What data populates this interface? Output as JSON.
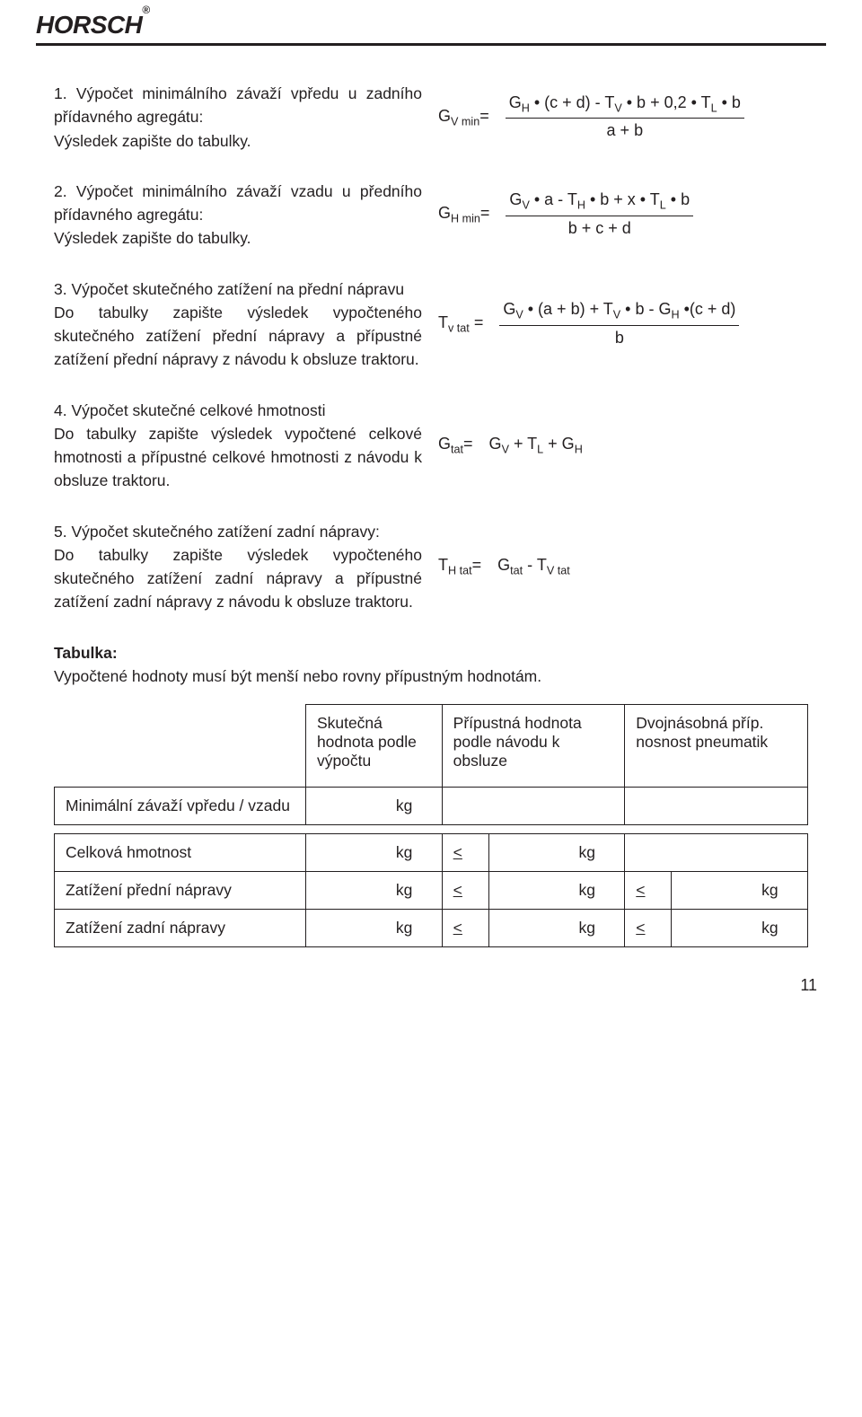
{
  "header": {
    "logo_text": "HORSCH",
    "logo_reg": "®"
  },
  "items": [
    {
      "text": "1. Výpočet minimálního závaží vpředu u zadního přídavného agregátu:\nVýsledek zapište do tabulky.",
      "lhs": "G<span class=\"subsc\">V min</span>=",
      "rhs_num": "G<span class=\"subsc\">H</span> • (c + d) - T<span class=\"subsc\">V</span> • b + 0,2 • T<span class=\"subsc\">L</span> • b",
      "rhs_den": "a + b"
    },
    {
      "text": "2. Výpočet minimálního závaží vzadu u předního přídavného agregátu:\nVýsledek zapište do tabulky.",
      "lhs": "G<span class=\"subsc\">H min</span>=",
      "rhs_num": "G<span class=\"subsc\">V</span> • a - T<span class=\"subsc\">H</span> • b + x • T<span class=\"subsc\">L</span> • b",
      "rhs_den": "b + c + d"
    },
    {
      "text": "3. Výpočet skutečného zatížení na přední nápravu\nDo tabulky zapište výsledek vypočteného skutečného zatížení přední nápravy a přípustné zatížení přední nápravy z návodu k obsluze traktoru.",
      "lhs": "T<span class=\"subsc\">v tat</span> =",
      "rhs_num": "G<span class=\"subsc\">V</span> • (a + b) + T<span class=\"subsc\">V</span> • b - G<span class=\"subsc\">H</span> •(c + d)",
      "rhs_den": "b"
    },
    {
      "text": "4. Výpočet skutečné celkové hmotnosti\nDo tabulky zapište výsledek vypočtené celkové hmotnosti a přípustné celkové hmotnosti z návodu k obsluze traktoru.",
      "lhs": "G<span class=\"subsc\">tat</span>=",
      "rhs_flat": "G<span class=\"subsc\">V</span> + T<span class=\"subsc\">L</span> + G<span class=\"subsc\">H</span>"
    },
    {
      "text": "5. Výpočet skutečného zatížení zadní nápravy:\nDo tabulky zapište výsledek vypočteného skutečného zatížení zadní nápravy a přípustné zatížení zadní nápravy z návodu k obsluze traktoru.",
      "lhs": "T<span class=\"subsc\">H tat</span>=",
      "rhs_flat": "G<span class=\"subsc\">tat</span> - T<span class=\"subsc\">V tat</span>"
    }
  ],
  "table_intro_title": "Tabulka:",
  "table_intro_text": "Vypočtené hodnoty musí být menší nebo rovny přípustným hodnotám.",
  "table": {
    "header_row_label": "",
    "col1": "Skutečná hodnota podle výpočtu",
    "col2": "Přípustná hodnota podle návodu k obsluze",
    "col3": "Dvojnásobná příp. nosnost pneumatik",
    "unit": "kg",
    "leq": "<",
    "rows": [
      {
        "label": "Minimální závaží vpředu / vzadu",
        "c1": true,
        "c2": false,
        "c3": false
      },
      {
        "label": "Celková hmotnost",
        "c1": true,
        "c2": true,
        "c3": false
      },
      {
        "label": "Zatížení přední nápravy",
        "c1": true,
        "c2": true,
        "c3": true
      },
      {
        "label": "Zatížení zadní nápravy",
        "c1": true,
        "c2": true,
        "c3": true
      }
    ]
  },
  "page_number": "11"
}
